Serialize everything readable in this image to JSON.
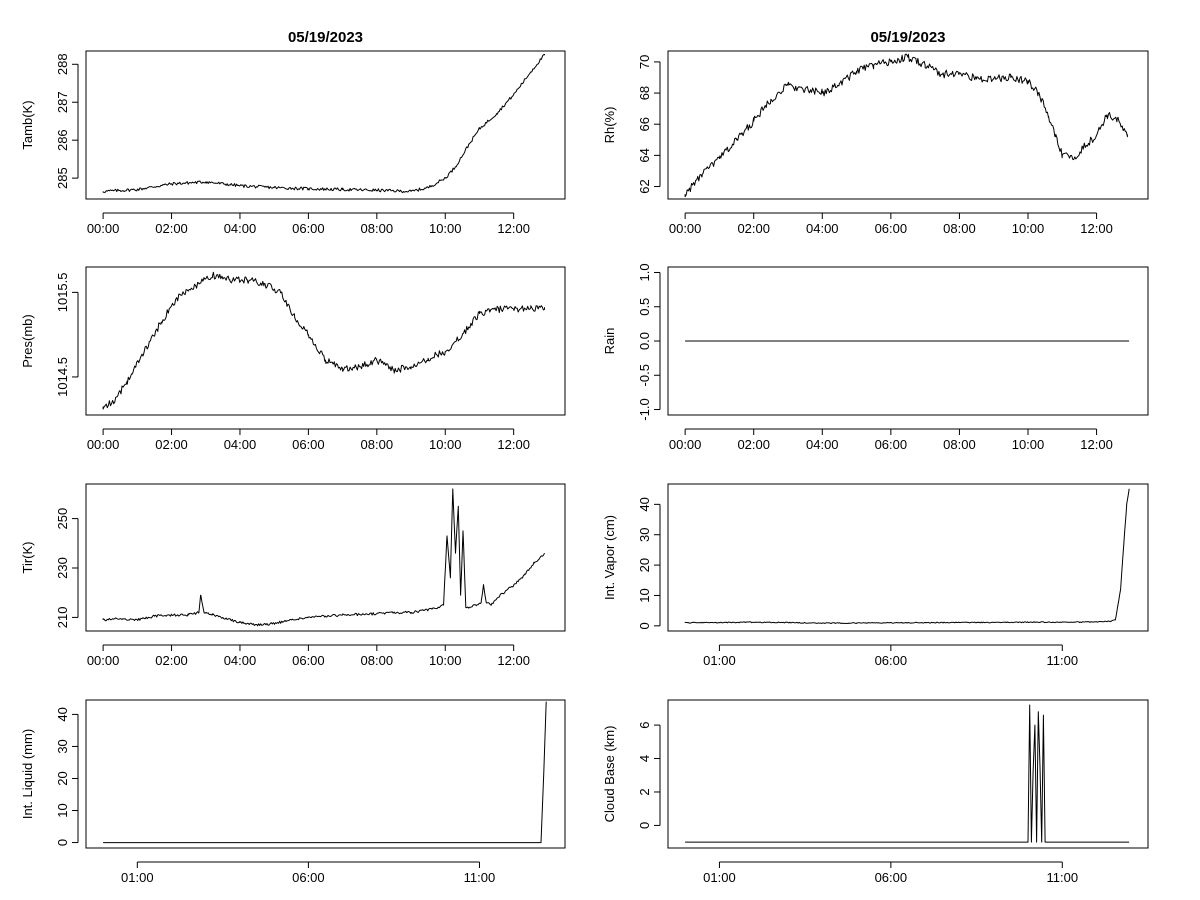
{
  "page": {
    "date_title": "05/19/2023"
  },
  "chart_data": [
    {
      "id": "tamb",
      "type": "line",
      "title": "05/19/2023",
      "xlabel": "",
      "ylabel": "Tamb(K)",
      "xlim": [
        -0.5,
        13.5
      ],
      "ylim": [
        284.45,
        288.35
      ],
      "xticks": [
        0,
        2,
        4,
        6,
        8,
        10,
        12
      ],
      "xtick_labels": [
        "00:00",
        "02:00",
        "04:00",
        "06:00",
        "08:00",
        "10:00",
        "12:00"
      ],
      "yticks": [
        285,
        286,
        287,
        288
      ],
      "ytick_labels": [
        "285",
        "286",
        "287",
        "288"
      ],
      "series": [
        {
          "name": "Tamb(K)",
          "x": [
            0,
            1,
            2,
            3,
            4,
            5,
            6,
            7,
            8,
            9,
            9.5,
            10,
            10.3,
            10.7,
            11,
            11.5,
            12,
            12.5,
            12.9
          ],
          "y": [
            284.65,
            284.7,
            284.85,
            284.9,
            284.8,
            284.75,
            284.72,
            284.7,
            284.68,
            284.65,
            284.75,
            285.0,
            285.3,
            285.9,
            286.3,
            286.7,
            287.2,
            287.8,
            288.25
          ],
          "noise": 0.04
        }
      ]
    },
    {
      "id": "rh",
      "type": "line",
      "title": "05/19/2023",
      "xlabel": "",
      "ylabel": "Rh(%)",
      "xlim": [
        -0.5,
        13.5
      ],
      "ylim": [
        61.2,
        70.7
      ],
      "xticks": [
        0,
        2,
        4,
        6,
        8,
        10,
        12
      ],
      "xtick_labels": [
        "00:00",
        "02:00",
        "04:00",
        "06:00",
        "08:00",
        "10:00",
        "12:00"
      ],
      "yticks": [
        62,
        64,
        66,
        68,
        70
      ],
      "ytick_labels": [
        "62",
        "64",
        "66",
        "68",
        "70"
      ],
      "series": [
        {
          "name": "Rh(%)",
          "x": [
            0,
            0.5,
            1,
            1.5,
            2,
            2.5,
            3,
            3.5,
            4,
            4.5,
            5,
            5.5,
            6,
            6.5,
            7,
            7.5,
            8,
            8.5,
            9,
            9.5,
            10,
            10.3,
            10.6,
            10.8,
            11,
            11.3,
            11.6,
            12,
            12.3,
            12.6,
            12.9
          ],
          "y": [
            61.5,
            62.8,
            63.8,
            65,
            66.2,
            67.6,
            68.5,
            68.2,
            68,
            68.6,
            69.4,
            69.8,
            70,
            70.3,
            69.8,
            69.2,
            69.3,
            68.9,
            68.9,
            69,
            68.8,
            68,
            66.5,
            65.2,
            64,
            63.8,
            64.5,
            65.3,
            66.6,
            66.3,
            65.2
          ],
          "noise": 0.25
        }
      ]
    },
    {
      "id": "pres",
      "type": "line",
      "title": "",
      "xlabel": "",
      "ylabel": "Pres(mb)",
      "xlim": [
        -0.5,
        13.5
      ],
      "ylim": [
        1014.05,
        1015.8
      ],
      "xticks": [
        0,
        2,
        4,
        6,
        8,
        10,
        12
      ],
      "xtick_labels": [
        "00:00",
        "02:00",
        "04:00",
        "06:00",
        "08:00",
        "10:00",
        "12:00"
      ],
      "yticks": [
        1014.5,
        1015.5
      ],
      "ytick_labels": [
        "1014.5",
        "1015.5"
      ],
      "series": [
        {
          "name": "Pres(mb)",
          "x": [
            0,
            0.3,
            0.7,
            1.2,
            1.7,
            2.2,
            2.8,
            3.2,
            3.7,
            4.2,
            4.7,
            5.2,
            5.6,
            6,
            6.5,
            7,
            7.5,
            8,
            8.5,
            9,
            9.5,
            10,
            10.5,
            11,
            11.5,
            12,
            12.5,
            12.9
          ],
          "y": [
            1014.15,
            1014.2,
            1014.45,
            1014.8,
            1015.15,
            1015.45,
            1015.6,
            1015.7,
            1015.65,
            1015.65,
            1015.6,
            1015.5,
            1015.2,
            1015.0,
            1014.7,
            1014.6,
            1014.62,
            1014.7,
            1014.58,
            1014.62,
            1014.72,
            1014.8,
            1015.0,
            1015.25,
            1015.3,
            1015.3,
            1015.32,
            1015.3
          ],
          "noise": 0.04
        }
      ]
    },
    {
      "id": "rain",
      "type": "line",
      "title": "",
      "xlabel": "",
      "ylabel": "Rain",
      "xlim": [
        -0.5,
        13.5
      ],
      "ylim": [
        -1.08,
        1.08
      ],
      "xticks": [
        0,
        2,
        4,
        6,
        8,
        10,
        12
      ],
      "xtick_labels": [
        "00:00",
        "02:00",
        "04:00",
        "06:00",
        "08:00",
        "10:00",
        "12:00"
      ],
      "yticks": [
        -1,
        -0.5,
        0,
        0.5,
        1
      ],
      "ytick_labels": [
        "-1.0",
        "-0.5",
        "0.0",
        "0.5",
        "1.0"
      ],
      "series": [
        {
          "name": "Rain",
          "x": [
            0,
            12.95
          ],
          "y": [
            0,
            0
          ],
          "noise": 0
        }
      ]
    },
    {
      "id": "tir",
      "type": "line",
      "title": "",
      "xlabel": "",
      "ylabel": "Tir(K)",
      "xlim": [
        -0.5,
        13.5
      ],
      "ylim": [
        204.5,
        264
      ],
      "xticks": [
        0,
        2,
        4,
        6,
        8,
        10,
        12
      ],
      "xtick_labels": [
        "00:00",
        "02:00",
        "04:00",
        "06:00",
        "08:00",
        "10:00",
        "12:00"
      ],
      "yticks": [
        210,
        230,
        250
      ],
      "ytick_labels": [
        "210",
        "230",
        "250"
      ],
      "series": [
        {
          "name": "Tir(K)",
          "x": [
            0,
            0.5,
            1,
            1.5,
            2,
            2.5,
            2.8,
            2.85,
            2.95,
            3.2,
            3.5,
            4,
            4.5,
            5,
            5.5,
            6,
            6.5,
            7,
            7.5,
            8,
            8.5,
            9,
            9.5,
            9.8,
            9.95,
            10.05,
            10.15,
            10.22,
            10.3,
            10.38,
            10.45,
            10.52,
            10.6,
            10.7,
            10.9,
            11.05,
            11.12,
            11.2,
            11.35,
            11.6,
            12,
            12.3,
            12.6,
            12.9
          ],
          "y": [
            209,
            209.5,
            209,
            210.5,
            211,
            211,
            212,
            219,
            212,
            211,
            210,
            208,
            207,
            207.5,
            209,
            210,
            210.5,
            211,
            211.2,
            211.5,
            212,
            212,
            213,
            214,
            215,
            243,
            226,
            262,
            236,
            255,
            219,
            245,
            214,
            214,
            215,
            216,
            223,
            216,
            215,
            219,
            223,
            227,
            232,
            236
          ],
          "noise": 0.5
        }
      ]
    },
    {
      "id": "vapor",
      "type": "line",
      "title": "",
      "xlabel": "",
      "ylabel": "Int. Vapor (cm)",
      "xlim": [
        -0.5,
        13.5
      ],
      "ylim": [
        -1.7,
        46.7
      ],
      "xticks": [
        1,
        6,
        11
      ],
      "xtick_labels": [
        "01:00",
        "06:00",
        "11:00"
      ],
      "yticks": [
        0,
        10,
        20,
        30,
        40
      ],
      "ytick_labels": [
        "0",
        "10",
        "20",
        "30",
        "40"
      ],
      "series": [
        {
          "name": "Int. Vapor (cm)",
          "x": [
            0,
            1,
            2,
            3,
            4,
            5,
            6,
            7,
            8,
            9,
            10,
            11,
            11.5,
            12,
            12.4,
            12.55,
            12.7,
            12.8,
            12.88,
            12.95
          ],
          "y": [
            1,
            1.1,
            1.2,
            1.1,
            0.9,
            0.9,
            1,
            1,
            1.1,
            1.1,
            1.2,
            1.2,
            1.2,
            1.3,
            1.5,
            2,
            12,
            28,
            40,
            45
          ],
          "noise": 0.15
        }
      ]
    },
    {
      "id": "liquid",
      "type": "line",
      "title": "",
      "xlabel": "",
      "ylabel": "Int. Liquid (mm)",
      "xlim": [
        -0.5,
        13.5
      ],
      "ylim": [
        -1.7,
        44.5
      ],
      "xticks": [
        1,
        6,
        11
      ],
      "xtick_labels": [
        "01:00",
        "06:00",
        "11:00"
      ],
      "yticks": [
        0,
        10,
        20,
        30,
        40
      ],
      "ytick_labels": [
        "0",
        "10",
        "20",
        "30",
        "40"
      ],
      "series": [
        {
          "name": "Int. Liquid (mm)",
          "x": [
            0,
            12.8,
            12.88,
            12.95
          ],
          "y": [
            0,
            0,
            22,
            44
          ],
          "noise": 0
        }
      ]
    },
    {
      "id": "cloud",
      "type": "line",
      "title": "",
      "xlabel": "",
      "ylabel": "Cloud Base (km)",
      "xlim": [
        -0.5,
        13.5
      ],
      "ylim": [
        -1.35,
        7.5
      ],
      "xticks": [
        1,
        6,
        11
      ],
      "xtick_labels": [
        "01:00",
        "06:00",
        "11:00"
      ],
      "yticks": [
        0,
        2,
        4,
        6
      ],
      "ytick_labels": [
        "0",
        "2",
        "4",
        "6"
      ],
      "series": [
        {
          "name": "Cloud Base (km)",
          "x": [
            0,
            10.0,
            10.05,
            10.1,
            10.15,
            10.2,
            10.25,
            10.3,
            10.35,
            10.4,
            10.45,
            10.5,
            12.95
          ],
          "y": [
            -1,
            -1,
            7.2,
            -1,
            3.2,
            6,
            -1,
            6.8,
            3.5,
            -1,
            6.6,
            -1,
            -1
          ],
          "noise": 0
        }
      ]
    }
  ]
}
